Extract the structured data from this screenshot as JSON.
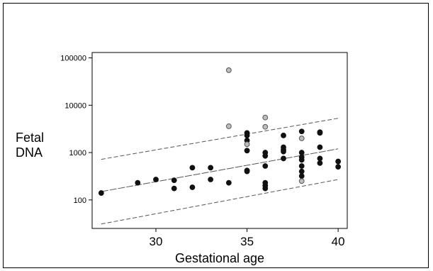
{
  "chart_data": {
    "type": "scatter",
    "title": "",
    "xlabel": "Gestational age",
    "ylabel_lines": [
      "Fetal",
      "DNA"
    ],
    "x_scale": "linear",
    "y_scale": "log",
    "xlim": [
      26.5,
      40.5
    ],
    "ylim": [
      25,
      130000
    ],
    "x_ticks": [
      30,
      35,
      40
    ],
    "x_tick_labels": [
      "30",
      "35",
      "40"
    ],
    "y_ticks": [
      100,
      1000,
      10000,
      100000
    ],
    "y_tick_labels": [
      "100",
      "1000",
      "10000",
      "100000"
    ],
    "grid": false,
    "colors": {
      "filled_point": "#111111",
      "open_point_fill": "#bdbdbd",
      "open_point_stroke": "#555555",
      "fit_line": "#555555",
      "band_line": "#555555"
    },
    "series": [
      {
        "marker": "filled",
        "points": [
          [
            27,
            140
          ],
          [
            29,
            230
          ],
          [
            30,
            270
          ],
          [
            31,
            260
          ],
          [
            31,
            175
          ],
          [
            32,
            480
          ],
          [
            32,
            185
          ],
          [
            33,
            480
          ],
          [
            33,
            270
          ],
          [
            34,
            230
          ],
          [
            35,
            2600
          ],
          [
            35,
            2300
          ],
          [
            35,
            1800
          ],
          [
            35,
            1100
          ],
          [
            35,
            420
          ],
          [
            35,
            400
          ],
          [
            36,
            1000
          ],
          [
            36,
            850
          ],
          [
            36,
            520
          ],
          [
            36,
            230
          ],
          [
            36,
            200
          ],
          [
            36,
            175
          ],
          [
            37,
            2300
          ],
          [
            37,
            1300
          ],
          [
            37,
            1150
          ],
          [
            37,
            1050
          ],
          [
            37,
            750
          ],
          [
            38,
            2800
          ],
          [
            38,
            1000
          ],
          [
            38,
            800
          ],
          [
            38,
            700
          ],
          [
            38,
            520
          ],
          [
            38,
            400
          ],
          [
            38,
            320
          ],
          [
            39,
            2700
          ],
          [
            39,
            2600
          ],
          [
            39,
            1300
          ],
          [
            39,
            750
          ],
          [
            39,
            600
          ],
          [
            40,
            650
          ],
          [
            40,
            500
          ]
        ]
      },
      {
        "marker": "open",
        "points": [
          [
            34,
            55000
          ],
          [
            34,
            3600
          ],
          [
            35,
            1500
          ],
          [
            36,
            5500
          ],
          [
            36,
            3500
          ],
          [
            38,
            2000
          ],
          [
            38,
            250
          ]
        ]
      }
    ],
    "regression_line": [
      [
        27,
        150
      ],
      [
        40,
        1200
      ]
    ],
    "prediction_band_upper": [
      [
        27,
        720
      ],
      [
        40,
        5300
      ]
    ],
    "prediction_band_lower": [
      [
        27,
        31
      ],
      [
        40,
        270
      ]
    ]
  }
}
